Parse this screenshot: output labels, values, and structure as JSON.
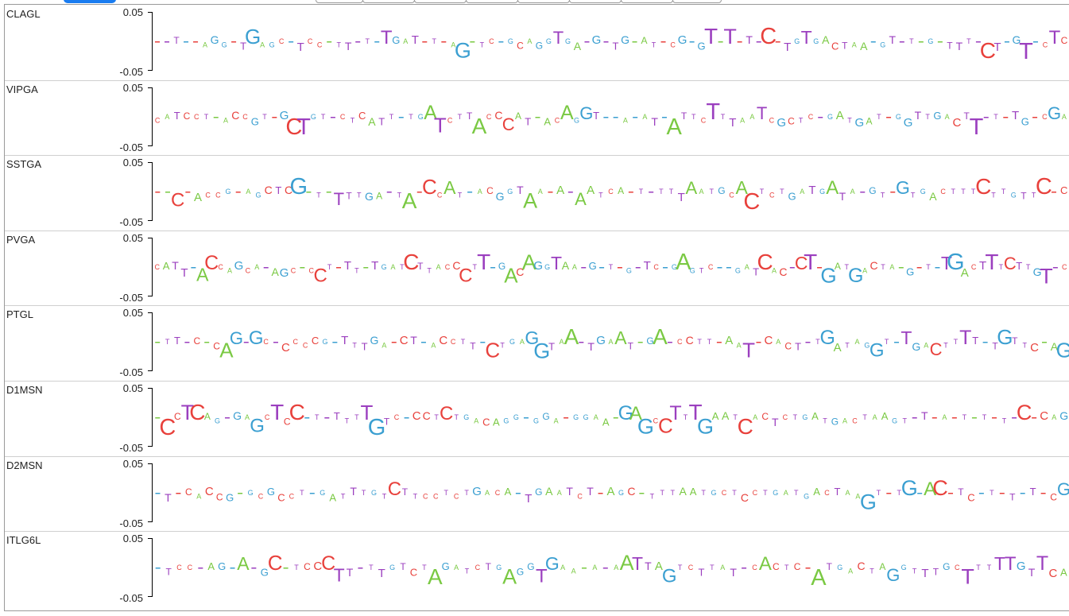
{
  "tabs": {
    "count": 8
  },
  "axis": {
    "top_label": "0.05",
    "bottom_label": "-0.05"
  },
  "nucleotide_colors": {
    "A": "#7ac943",
    "C": "#e8413c",
    "G": "#3b9fd1",
    "T": "#9b3fbf"
  },
  "tracks": [
    {
      "name": "CLAGL",
      "seq": "--T--AGG-TGAGC-TCC-TT-T-TGAT-T-AG-TC-GCAGGTGA-G-TG-AT-CG-GT-T-T-C-TGTGACTAA-GT-T-G-TTT-CT-GT-CTC"
    },
    {
      "name": "VIPGA",
      "seq": "CATCCT-ACCGT-GCTGT-CTCATT-TGATCTTACCCAT-ACAGGT--A-AT-ATTCTTTAATCGCTC-GATGAT-GGTTGACTT-T-TG-CGA"
    },
    {
      "name": "SSTGA",
      "seq": "--C-ACCG-AGCTCG-T-TTTGA-TA-CCAT-ACGGTAA-A-AATCA-T-TTTAATGCACTCTGATGATA-GT-GTGACTTTCTTGTTC-C"
    },
    {
      "name": "PVGA",
      "seq": "CATT-ACCAGCA-AGC-CCT-TT-TGATCTTACCCTT-GACAGGTAA-G-T-G-TC-GAGTC--GATCAC-CT-GATGACTA-G-T-TGACTTTCTTGT-C"
    },
    {
      "name": "PTGL",
      "seq": "-TT-C-CAG-GC-CCCCG-TTTGA-CT-ACCTT-CTGAGGTAA-TGAAT-GA-CCTT-AAT-CACT-TGATAGGT-TGACTTTT-TGTTC-AG"
    },
    {
      "name": "D1MSN",
      "seq": "-CCTCAG-GAGCTCC-T-TTTTGTC-CCTCTGACAGG-GGA-GGAA-GAGCCTTTGAATCACTCTGATGACTAAGT-T-A-T-T-T-C-CAG"
    },
    {
      "name": "D2MSN",
      "seq": "-T-CACCG-GCGCCT-GATTTGTCTTCCTCTGACA-TGAATCT-AGC-TTTAATGCTCCTGATGACTAAGT-TG-AC-TC-T-T-T-CG"
    },
    {
      "name": "ITLG6L",
      "seq": "-TCC-AG-A-GC-TCCCTT-TTGTCTAGATCTGAGGTGAA-A-AATTAGTCTTAT-CACTC-ATGACTAGGTTTGCTTTTTGTTCA"
    }
  ]
}
